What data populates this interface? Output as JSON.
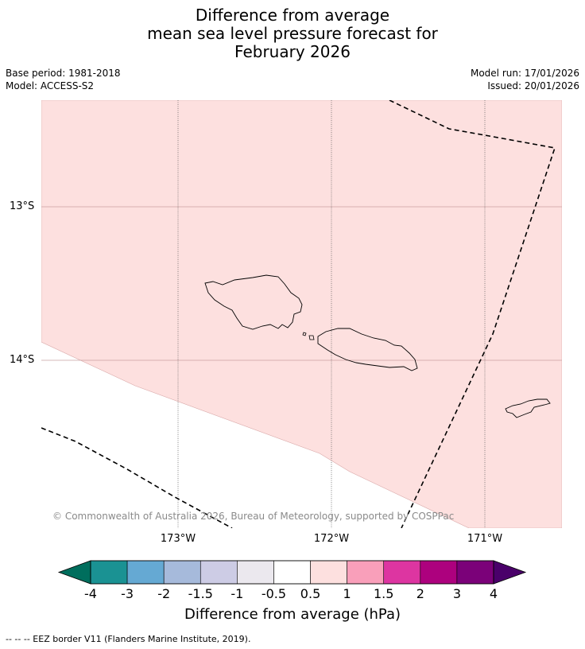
{
  "title": {
    "line1": "Difference from average",
    "line2": "mean sea level pressure forecast for",
    "line3": "February 2026"
  },
  "meta": {
    "base_period": "Base period: 1981-2018",
    "model": "Model: ACCESS-S2",
    "model_run": "Model run: 17/01/2026",
    "issued": "Issued: 20/01/2026"
  },
  "map": {
    "lat_labels": [
      "13°S",
      "14°S"
    ],
    "lon_labels": [
      "173°W",
      "172°W",
      "171°W"
    ],
    "shading_color": "#fde0df",
    "regions": [
      "Samoa",
      "American Samoa"
    ],
    "copyright": "© Commonwealth of Australia 2026, Bureau of Meteorology, supported by COSPPac"
  },
  "colorbar": {
    "title": "Difference from average (hPa)",
    "ticks": [
      "-4",
      "-3",
      "-2",
      "-1.5",
      "-1",
      "-0.5",
      "0.5",
      "1",
      "1.5",
      "2",
      "3",
      "4"
    ],
    "colors": [
      "#006e5d",
      "#1a9293",
      "#65a9d3",
      "#a6badb",
      "#cdcce5",
      "#ebe8ee",
      "#ffffff",
      "#fde0df",
      "#f99fba",
      "#dd35a1",
      "#ad017e",
      "#7b0179",
      "#4a006a"
    ]
  },
  "footnote": "-- -- -- EEZ border V11 (Flanders Marine Institute, 2019)."
}
